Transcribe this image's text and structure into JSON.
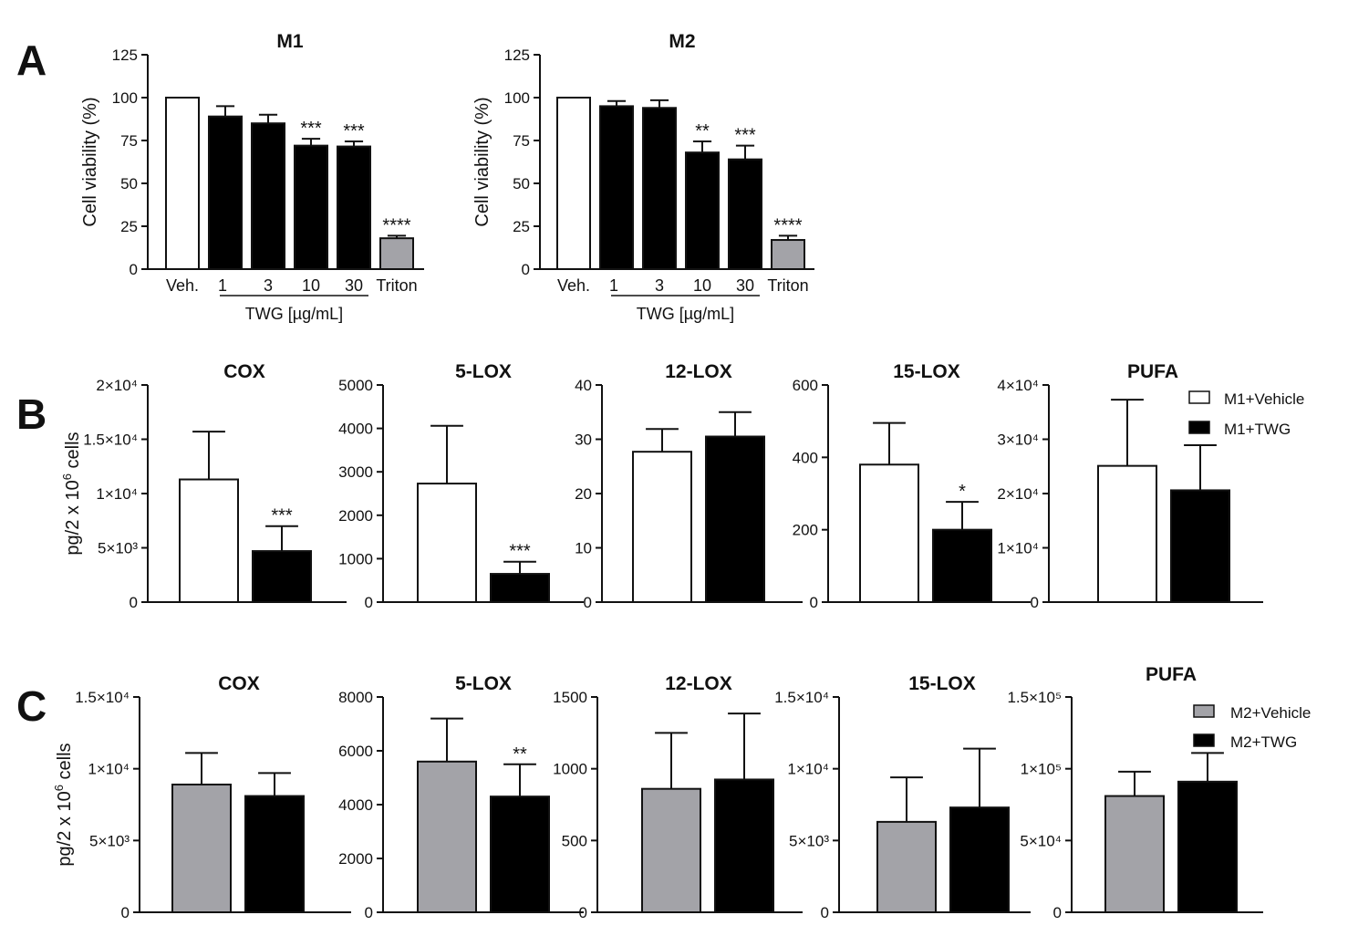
{
  "figure": {
    "panel_labels": [
      "A",
      "B",
      "C"
    ],
    "colors": {
      "white_bar": "#ffffff",
      "black_bar": "#000000",
      "gray_bar": "#a3a3a8",
      "axis": "#111111"
    },
    "legend_b": {
      "items": [
        {
          "label": "M1+Vehicle",
          "color": "#ffffff"
        },
        {
          "label": "M1+TWG",
          "color": "#000000"
        }
      ]
    },
    "legend_c": {
      "items": [
        {
          "label": "M2+Vehicle",
          "color": "#a3a3a8"
        },
        {
          "label": "M2+TWG",
          "color": "#000000"
        }
      ]
    }
  },
  "chart_data": [
    {
      "panel": "A",
      "type": "bar",
      "title": "M1",
      "ylabel": "Cell viability (%)",
      "xgroup_label": "TWG [µg/mL]",
      "ylim": [
        0,
        125
      ],
      "yticks": [
        {
          "v": 0,
          "label": "0"
        },
        {
          "v": 25,
          "label": "25"
        },
        {
          "v": 50,
          "label": "50"
        },
        {
          "v": 75,
          "label": "75"
        },
        {
          "v": 100,
          "label": "100"
        },
        {
          "v": 125,
          "label": "125"
        }
      ],
      "categories": [
        "Veh.",
        "1",
        "3",
        "10",
        "30",
        "Triton"
      ],
      "values": [
        100,
        89,
        85,
        72,
        71.5,
        18
      ],
      "errors": [
        0,
        6,
        5,
        4,
        3,
        1.5
      ],
      "colors": [
        "#ffffff",
        "#000000",
        "#000000",
        "#000000",
        "#000000",
        "#a3a3a8"
      ],
      "significance": [
        "",
        "",
        "",
        "***",
        "***",
        "****"
      ]
    },
    {
      "panel": "A",
      "type": "bar",
      "title": "M2",
      "ylabel": "Cell viability (%)",
      "xgroup_label": "TWG [µg/mL]",
      "ylim": [
        0,
        125
      ],
      "yticks": [
        {
          "v": 0,
          "label": "0"
        },
        {
          "v": 25,
          "label": "25"
        },
        {
          "v": 50,
          "label": "50"
        },
        {
          "v": 75,
          "label": "75"
        },
        {
          "v": 100,
          "label": "100"
        },
        {
          "v": 125,
          "label": "125"
        }
      ],
      "categories": [
        "Veh.",
        "1",
        "3",
        "10",
        "30",
        "Triton"
      ],
      "values": [
        100,
        95,
        94,
        68,
        64,
        17
      ],
      "errors": [
        0,
        3,
        4.5,
        6.5,
        8,
        2.5
      ],
      "colors": [
        "#ffffff",
        "#000000",
        "#000000",
        "#000000",
        "#000000",
        "#a3a3a8"
      ],
      "significance": [
        "",
        "",
        "",
        "**",
        "***",
        "****"
      ]
    },
    {
      "panel": "B",
      "type": "bar",
      "title": "COX",
      "ylabel": "pg/2 x 10^6 cells",
      "ylim": [
        0,
        20000
      ],
      "yticks": [
        {
          "v": 0,
          "label": "0"
        },
        {
          "v": 5000,
          "label": "5×10³"
        },
        {
          "v": 10000,
          "label": "1×10⁴"
        },
        {
          "v": 15000,
          "label": "1.5×10⁴"
        },
        {
          "v": 20000,
          "label": "2×10⁴"
        }
      ],
      "categories": [
        "M1+Vehicle",
        "M1+TWG"
      ],
      "values": [
        11300,
        4700
      ],
      "errors": [
        4400,
        2300
      ],
      "colors": [
        "#ffffff",
        "#000000"
      ],
      "significance": [
        "",
        "***"
      ]
    },
    {
      "panel": "B",
      "type": "bar",
      "title": "5-LOX",
      "ylim": [
        0,
        5000
      ],
      "yticks": [
        {
          "v": 0,
          "label": "0"
        },
        {
          "v": 1000,
          "label": "1000"
        },
        {
          "v": 2000,
          "label": "2000"
        },
        {
          "v": 3000,
          "label": "3000"
        },
        {
          "v": 4000,
          "label": "4000"
        },
        {
          "v": 5000,
          "label": "5000"
        }
      ],
      "categories": [
        "M1+Vehicle",
        "M1+TWG"
      ],
      "values": [
        2730,
        650
      ],
      "errors": [
        1330,
        280
      ],
      "colors": [
        "#ffffff",
        "#000000"
      ],
      "significance": [
        "",
        "***"
      ]
    },
    {
      "panel": "B",
      "type": "bar",
      "title": "12-LOX",
      "ylim": [
        0,
        40
      ],
      "yticks": [
        {
          "v": 0,
          "label": "0"
        },
        {
          "v": 10,
          "label": "10"
        },
        {
          "v": 20,
          "label": "20"
        },
        {
          "v": 30,
          "label": "30"
        },
        {
          "v": 40,
          "label": "40"
        }
      ],
      "categories": [
        "M1+Vehicle",
        "M1+TWG"
      ],
      "values": [
        27.7,
        30.5
      ],
      "errors": [
        4.2,
        4.5
      ],
      "colors": [
        "#ffffff",
        "#000000"
      ],
      "significance": [
        "",
        ""
      ]
    },
    {
      "panel": "B",
      "type": "bar",
      "title": "15-LOX",
      "ylim": [
        0,
        600
      ],
      "yticks": [
        {
          "v": 0,
          "label": "0"
        },
        {
          "v": 200,
          "label": "200"
        },
        {
          "v": 400,
          "label": "400"
        },
        {
          "v": 600,
          "label": "600"
        }
      ],
      "categories": [
        "M1+Vehicle",
        "M1+TWG"
      ],
      "values": [
        380,
        200
      ],
      "errors": [
        115,
        77
      ],
      "colors": [
        "#ffffff",
        "#000000"
      ],
      "significance": [
        "",
        "*"
      ]
    },
    {
      "panel": "B",
      "type": "bar",
      "title": "PUFA",
      "ylim": [
        0,
        40000
      ],
      "yticks": [
        {
          "v": 0,
          "label": "0"
        },
        {
          "v": 10000,
          "label": "1×10⁴"
        },
        {
          "v": 20000,
          "label": "2×10⁴"
        },
        {
          "v": 30000,
          "label": "3×10⁴"
        },
        {
          "v": 40000,
          "label": "4×10⁴"
        }
      ],
      "categories": [
        "M1+Vehicle",
        "M1+TWG"
      ],
      "values": [
        25100,
        20600
      ],
      "errors": [
        12200,
        8300
      ],
      "colors": [
        "#ffffff",
        "#000000"
      ],
      "significance": [
        "",
        ""
      ]
    },
    {
      "panel": "C",
      "type": "bar",
      "title": "COX",
      "ylabel": "pg/2 x 10^6 cells",
      "ylim": [
        0,
        15000
      ],
      "yticks": [
        {
          "v": 0,
          "label": "0"
        },
        {
          "v": 5000,
          "label": "5×10³"
        },
        {
          "v": 10000,
          "label": "1×10⁴"
        },
        {
          "v": 15000,
          "label": "1.5×10⁴"
        }
      ],
      "categories": [
        "M2+Vehicle",
        "M2+TWG"
      ],
      "values": [
        8900,
        8100
      ],
      "errors": [
        2200,
        1600
      ],
      "colors": [
        "#a3a3a8",
        "#000000"
      ],
      "significance": [
        "",
        ""
      ]
    },
    {
      "panel": "C",
      "type": "bar",
      "title": "5-LOX",
      "ylim": [
        0,
        8000
      ],
      "yticks": [
        {
          "v": 0,
          "label": "0"
        },
        {
          "v": 2000,
          "label": "2000"
        },
        {
          "v": 4000,
          "label": "4000"
        },
        {
          "v": 6000,
          "label": "6000"
        },
        {
          "v": 8000,
          "label": "8000"
        }
      ],
      "categories": [
        "M2+Vehicle",
        "M2+TWG"
      ],
      "values": [
        5600,
        4300
      ],
      "errors": [
        1600,
        1200
      ],
      "colors": [
        "#a3a3a8",
        "#000000"
      ],
      "significance": [
        "",
        "**"
      ]
    },
    {
      "panel": "C",
      "type": "bar",
      "title": "12-LOX",
      "ylim": [
        0,
        1500
      ],
      "yticks": [
        {
          "v": 0,
          "label": "0"
        },
        {
          "v": 500,
          "label": "500"
        },
        {
          "v": 1000,
          "label": "1000"
        },
        {
          "v": 1500,
          "label": "1500"
        }
      ],
      "categories": [
        "M2+Vehicle",
        "M2+TWG"
      ],
      "values": [
        860,
        925
      ],
      "errors": [
        390,
        460
      ],
      "colors": [
        "#a3a3a8",
        "#000000"
      ],
      "significance": [
        "",
        ""
      ]
    },
    {
      "panel": "C",
      "type": "bar",
      "title": "15-LOX",
      "ylim": [
        0,
        15000
      ],
      "yticks": [
        {
          "v": 0,
          "label": "0"
        },
        {
          "v": 5000,
          "label": "5×10³"
        },
        {
          "v": 10000,
          "label": "1×10⁴"
        },
        {
          "v": 15000,
          "label": "1.5×10⁴"
        }
      ],
      "categories": [
        "M2+Vehicle",
        "M2+TWG"
      ],
      "values": [
        6300,
        7300
      ],
      "errors": [
        3100,
        4100
      ],
      "colors": [
        "#a3a3a8",
        "#000000"
      ],
      "significance": [
        "",
        ""
      ]
    },
    {
      "panel": "C",
      "type": "bar",
      "title": "PUFA",
      "ylim": [
        0,
        150000
      ],
      "yticks": [
        {
          "v": 0,
          "label": "0"
        },
        {
          "v": 50000,
          "label": "5×10⁴"
        },
        {
          "v": 100000,
          "label": "1×10⁵"
        },
        {
          "v": 150000,
          "label": "1.5×10⁵"
        }
      ],
      "categories": [
        "M2+Vehicle",
        "M2+TWG"
      ],
      "values": [
        81000,
        91000
      ],
      "errors": [
        17000,
        20000
      ],
      "colors": [
        "#a3a3a8",
        "#000000"
      ],
      "significance": [
        "",
        ""
      ]
    }
  ]
}
